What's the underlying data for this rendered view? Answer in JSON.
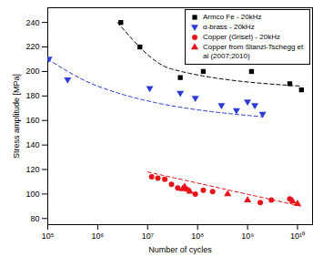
{
  "chart_data": {
    "type": "scatter",
    "xlabel": "Number of cycles",
    "ylabel": "Stress amplitude [MPa]",
    "log": "x",
    "grid": false,
    "legend": "top-right",
    "xlim": [
      100000,
      20000000000
    ],
    "xticks": [
      {
        "value": 100000,
        "label": "10⁵"
      },
      {
        "value": 1000000,
        "label": "10⁶"
      },
      {
        "value": 10000000,
        "label": "10⁷"
      },
      {
        "value": 100000000,
        "label": "10⁸"
      },
      {
        "value": 1000000000,
        "label": "10⁹"
      },
      {
        "value": 10000000000,
        "label": "10¹⁰"
      }
    ],
    "ylim": [
      75,
      252
    ],
    "yticks": [
      80,
      100,
      120,
      140,
      160,
      180,
      200,
      220,
      240
    ],
    "series": [
      {
        "name": "Armco Fe - 20kHz",
        "color": "#000000",
        "marker": "square",
        "x": [
          2900000,
          7000000,
          45000000,
          130000000,
          1200000000,
          7000000000,
          12000000000
        ],
        "values": [
          240,
          220,
          195,
          200,
          200,
          190,
          185
        ],
        "trend_x": [
          2500000,
          30000000,
          12000000000
        ],
        "trend_values": [
          240,
          202,
          188
        ]
      },
      {
        "name": "α-brass - 20kHz",
        "color": "#2b3bd6",
        "marker": "triangle-down",
        "x": [
          105000,
          250000,
          11000000,
          45000000,
          90000000,
          300000000,
          600000000,
          1000000000,
          1400000000,
          2000000000
        ],
        "values": [
          210,
          193,
          186,
          182,
          178,
          172,
          168,
          175,
          172,
          165
        ],
        "trend_x": [
          100000,
          1000000,
          2000000000
        ],
        "trend_values": [
          210,
          188,
          163
        ]
      },
      {
        "name": "Copper (Griset) - 20kHz",
        "color": "#e8141c",
        "marker": "circle",
        "x": [
          12000000,
          16000000,
          22000000,
          30000000,
          40000000,
          60000000,
          90000000,
          130000000,
          200000000,
          1800000000,
          3000000000,
          7000000000
        ],
        "values": [
          114,
          113,
          112,
          108,
          105,
          104,
          100,
          103,
          102,
          93,
          95,
          96
        ],
        "trend_x": [
          10000000,
          12000000000
        ],
        "trend_values": [
          118,
          90
        ]
      },
      {
        "name": "Copper from Stanzl-Tschegg et al (2007;2010)",
        "color": "#e8141c",
        "marker": "triangle",
        "x": [
          50000000,
          55000000,
          70000000,
          400000000,
          1000000000,
          8000000000,
          10000000000
        ],
        "values": [
          104,
          106,
          102,
          100,
          95,
          94,
          92
        ]
      }
    ]
  }
}
